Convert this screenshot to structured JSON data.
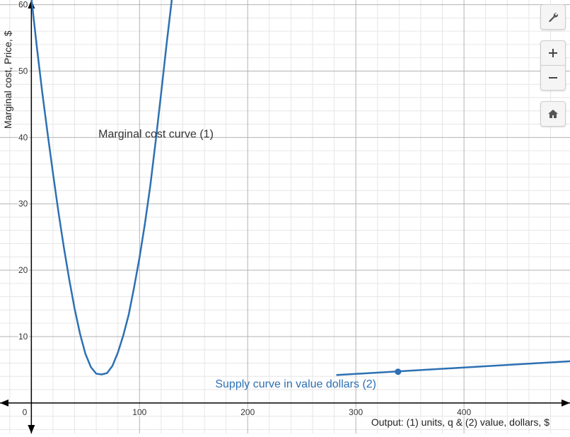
{
  "toolbar": {
    "settings_icon": "wrench-icon",
    "zoom_in_icon": "plus-icon",
    "zoom_out_icon": "minus-icon",
    "home_icon": "home-icon"
  },
  "chart_data": {
    "type": "line",
    "xlabel": "Output: (1) units, q & (2) value, dollars, $",
    "ylabel": "Marginal cost, Price, $",
    "xlim": [
      -29,
      498
    ],
    "ylim": [
      -4.6,
      60.7
    ],
    "x_ticks": [
      100,
      200,
      300,
      400
    ],
    "y_ticks": [
      10,
      20,
      30,
      40,
      50,
      60
    ],
    "origin_label": "0",
    "grid": true,
    "series": [
      {
        "name": "Marginal cost curve (1)",
        "color": "#2d70b3",
        "label_pos": [
          62,
          40
        ],
        "label_color": "#333333",
        "points": [
          [
            0,
            61
          ],
          [
            5,
            53.7
          ],
          [
            10,
            46.9
          ],
          [
            15,
            40.6
          ],
          [
            20,
            34.6
          ],
          [
            25,
            28.8
          ],
          [
            30,
            23.5
          ],
          [
            35,
            18.6
          ],
          [
            40,
            14.2
          ],
          [
            45,
            10.4
          ],
          [
            50,
            7.4
          ],
          [
            55,
            5.4
          ],
          [
            60,
            4.4
          ],
          [
            65,
            4.3
          ],
          [
            70,
            4.5
          ],
          [
            75,
            5.6
          ],
          [
            80,
            7.6
          ],
          [
            85,
            10.2
          ],
          [
            90,
            13.3
          ],
          [
            95,
            17.4
          ],
          [
            100,
            21.9
          ],
          [
            105,
            27
          ],
          [
            110,
            32.8
          ],
          [
            115,
            39.5
          ],
          [
            120,
            46.7
          ],
          [
            125,
            54
          ],
          [
            130,
            61
          ]
        ]
      },
      {
        "name": "Supply curve in value dollars (2)",
        "color": "#2d70b3",
        "label_pos": [
          170,
          2.3
        ],
        "label_color": "#2d70b3",
        "points": [
          [
            282,
            4.2
          ],
          [
            500,
            6.3
          ]
        ],
        "marker": [
          339,
          4.7
        ]
      }
    ]
  }
}
